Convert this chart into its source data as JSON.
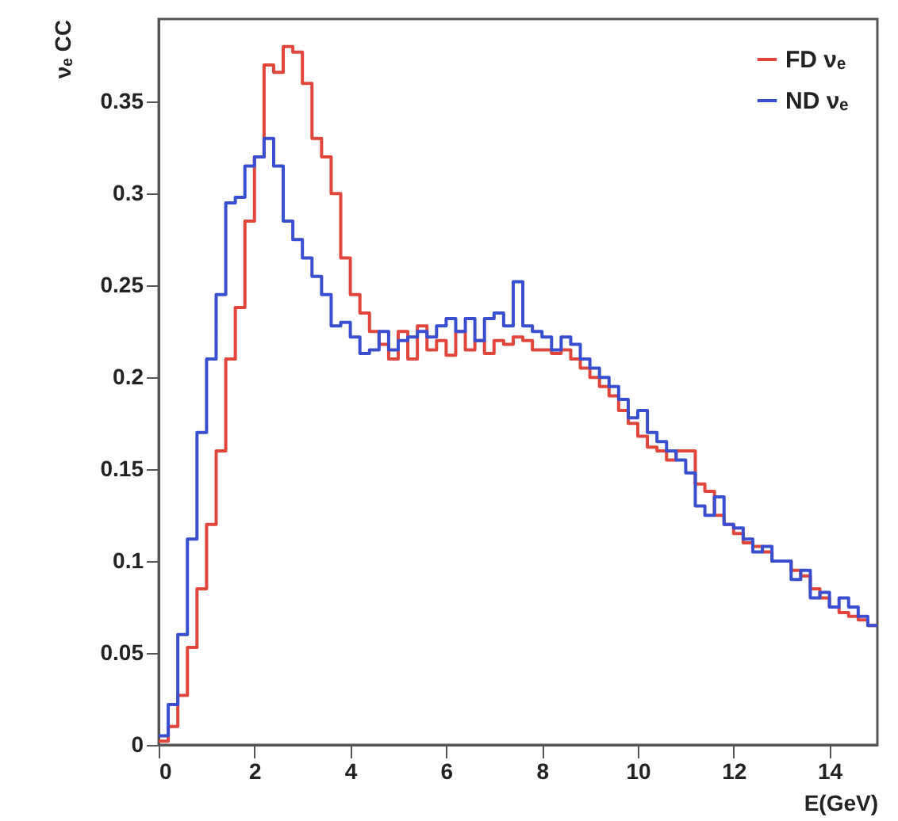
{
  "chart_data": {
    "type": "histogram",
    "xlabel": "E(GeV)",
    "ylabel": "νₑ CC",
    "xlim": [
      0,
      15
    ],
    "xticks": [
      0,
      2,
      4,
      6,
      8,
      10,
      12,
      14
    ],
    "ylim": [
      0,
      0.395
    ],
    "yticks": [
      0,
      0.05,
      0.1,
      0.15,
      0.2,
      0.25,
      0.3,
      0.35
    ],
    "legend": "top right",
    "grid": false,
    "bins": [
      0,
      0.2,
      0.4,
      0.6,
      0.8,
      1,
      1.2,
      1.4,
      1.6,
      1.8,
      2,
      2.2,
      2.4,
      2.6,
      2.8,
      3,
      3.2,
      3.4,
      3.6,
      3.8,
      4,
      4.2,
      4.4,
      4.6,
      4.8,
      5,
      5.2,
      5.4,
      5.6,
      5.8,
      6,
      6.2,
      6.4,
      6.6,
      6.8,
      7,
      7.2,
      7.4,
      7.6,
      7.8,
      8,
      8.2,
      8.4,
      8.6,
      8.8,
      9,
      9.2,
      9.4,
      9.6,
      9.8,
      10,
      10.2,
      10.4,
      10.6,
      10.8,
      11,
      11.2,
      11.4,
      11.6,
      11.8,
      12,
      12.2,
      12.4,
      12.6,
      12.8,
      13,
      13.2,
      13.4,
      13.6,
      13.8,
      14,
      14.2,
      14.4,
      14.6,
      14.8,
      15
    ],
    "series": [
      {
        "name": "FD νₑ",
        "color": "#e0463c",
        "values": [
          0.002,
          0.01,
          0.027,
          0.053,
          0.085,
          0.12,
          0.16,
          0.21,
          0.238,
          0.285,
          0.32,
          0.37,
          0.366,
          0.38,
          0.377,
          0.36,
          0.33,
          0.32,
          0.3,
          0.265,
          0.245,
          0.235,
          0.225,
          0.218,
          0.21,
          0.225,
          0.21,
          0.228,
          0.215,
          0.22,
          0.212,
          0.225,
          0.215,
          0.22,
          0.213,
          0.22,
          0.218,
          0.222,
          0.22,
          0.215,
          0.215,
          0.213,
          0.215,
          0.21,
          0.205,
          0.2,
          0.195,
          0.19,
          0.182,
          0.175,
          0.168,
          0.162,
          0.16,
          0.155,
          0.16,
          0.16,
          0.142,
          0.138,
          0.125,
          0.12,
          0.115,
          0.11,
          0.108,
          0.105,
          0.1,
          0.1,
          0.095,
          0.092,
          0.085,
          0.08,
          0.075,
          0.072,
          0.07,
          0.068,
          0.065
        ]
      },
      {
        "name": "ND νₑ",
        "color": "#3a4fcf",
        "values": [
          0.005,
          0.022,
          0.06,
          0.112,
          0.17,
          0.21,
          0.245,
          0.295,
          0.298,
          0.315,
          0.32,
          0.33,
          0.315,
          0.285,
          0.275,
          0.265,
          0.255,
          0.245,
          0.228,
          0.23,
          0.222,
          0.213,
          0.215,
          0.225,
          0.215,
          0.22,
          0.222,
          0.225,
          0.222,
          0.228,
          0.232,
          0.225,
          0.232,
          0.22,
          0.232,
          0.235,
          0.228,
          0.252,
          0.228,
          0.225,
          0.222,
          0.215,
          0.222,
          0.218,
          0.21,
          0.205,
          0.2,
          0.195,
          0.188,
          0.178,
          0.182,
          0.17,
          0.165,
          0.16,
          0.155,
          0.148,
          0.13,
          0.125,
          0.135,
          0.12,
          0.118,
          0.112,
          0.105,
          0.108,
          0.1,
          0.1,
          0.09,
          0.095,
          0.08,
          0.083,
          0.075,
          0.08,
          0.075,
          0.07,
          0.065
        ]
      }
    ]
  }
}
